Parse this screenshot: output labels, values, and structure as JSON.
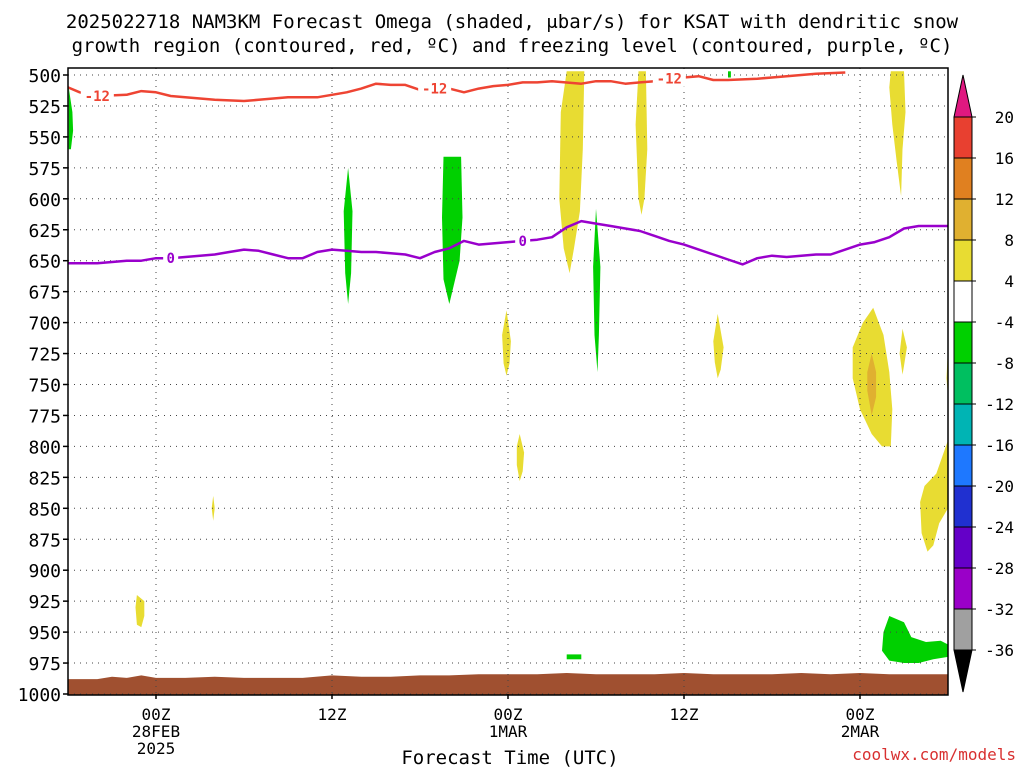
{
  "title_line1": "2025022718 NAM3KM Forecast Omega (shaded, μbar/s) for KSAT with dendritic snow",
  "title_line2": "growth region (contoured, red, ºC) and freezing level (contoured, purple, ºC)",
  "xlabel": "Forecast Time (UTC)",
  "credit": "coolwx.com/models",
  "chart_data": {
    "type": "heatmap",
    "y_axis": {
      "label": "",
      "unit": "hPa",
      "range": [
        1000,
        500
      ],
      "ticks": [
        500,
        525,
        550,
        575,
        600,
        625,
        650,
        675,
        700,
        725,
        750,
        775,
        800,
        825,
        850,
        875,
        900,
        925,
        950,
        975,
        1000
      ]
    },
    "x_axis": {
      "unit": "forecast hour",
      "range": [
        0,
        60
      ],
      "ticks": [
        {
          "hour": 6,
          "lines": [
            "00Z",
            "28FEB",
            "2025"
          ]
        },
        {
          "hour": 18,
          "lines": [
            "12Z"
          ]
        },
        {
          "hour": 30,
          "lines": [
            "00Z",
            "1MAR"
          ]
        },
        {
          "hour": 42,
          "lines": [
            "12Z"
          ]
        },
        {
          "hour": 54,
          "lines": [
            "00Z",
            "2MAR"
          ]
        }
      ]
    },
    "colorbar": {
      "levels": [
        -36,
        -32,
        -28,
        -24,
        -20,
        -16,
        -12,
        -8,
        -4,
        4,
        8,
        12,
        16,
        20
      ],
      "labels": [
        "20",
        "16",
        "12",
        "8",
        "4",
        "-4",
        "-8",
        "-12",
        "-16",
        "-20",
        "-24",
        "-28",
        "-32",
        "-36"
      ],
      "colors": [
        "#a0a0a0",
        "#9a00c8",
        "#6400c8",
        "#2030d0",
        "#1e78ff",
        "#00b4b4",
        "#00bf60",
        "#00d000",
        "#ffffff",
        "#e8dc32",
        "#e0b030",
        "#e08020",
        "#e84030",
        "#e01880"
      ]
    },
    "dgz_contour": {
      "name": "-12",
      "color": "#ee4433",
      "points": [
        [
          0,
          510
        ],
        [
          0.8,
          514
        ],
        [
          2,
          517
        ],
        [
          4,
          516
        ],
        [
          5,
          513
        ],
        [
          6,
          514
        ],
        [
          7,
          517
        ],
        [
          8,
          518
        ],
        [
          10,
          520
        ],
        [
          12,
          521
        ],
        [
          13,
          520
        ],
        [
          15,
          518
        ],
        [
          17,
          518
        ],
        [
          19,
          514
        ],
        [
          20,
          511
        ],
        [
          21,
          507
        ],
        [
          22,
          508
        ],
        [
          23,
          508
        ],
        [
          24,
          512
        ],
        [
          25,
          511
        ],
        [
          26,
          511
        ],
        [
          27,
          514
        ],
        [
          28,
          511
        ],
        [
          29,
          509
        ],
        [
          30,
          508
        ],
        [
          31,
          506
        ],
        [
          32,
          506
        ],
        [
          33,
          505
        ],
        [
          35,
          507
        ],
        [
          36,
          505
        ],
        [
          37,
          505
        ],
        [
          38,
          507
        ],
        [
          39,
          506
        ],
        [
          40,
          505
        ],
        [
          41,
          503
        ],
        [
          42,
          502
        ],
        [
          43,
          501
        ],
        [
          44,
          504
        ],
        [
          45,
          504
        ],
        [
          47,
          503
        ],
        [
          48,
          502
        ],
        [
          50,
          500
        ],
        [
          51,
          499
        ],
        [
          53,
          498
        ]
      ],
      "labels": [
        [
          2,
          517
        ],
        [
          25,
          511
        ],
        [
          41,
          503
        ]
      ]
    },
    "freezing_level": {
      "name": "0",
      "color": "#9900cc",
      "points": [
        [
          0,
          652
        ],
        [
          2,
          652
        ],
        [
          4,
          650
        ],
        [
          5,
          650
        ],
        [
          6,
          648
        ],
        [
          7,
          648
        ],
        [
          8,
          647
        ],
        [
          10,
          645
        ],
        [
          11,
          643
        ],
        [
          12,
          641
        ],
        [
          13,
          642
        ],
        [
          14,
          645
        ],
        [
          15,
          648
        ],
        [
          16,
          648
        ],
        [
          17,
          643
        ],
        [
          18,
          641
        ],
        [
          19,
          642
        ],
        [
          20,
          643
        ],
        [
          21,
          643
        ],
        [
          22,
          644
        ],
        [
          23,
          645
        ],
        [
          24,
          648
        ],
        [
          25,
          643
        ],
        [
          26,
          640
        ],
        [
          27,
          634
        ],
        [
          28,
          637
        ],
        [
          29,
          636
        ],
        [
          30,
          635
        ],
        [
          31,
          634
        ],
        [
          32,
          633
        ],
        [
          33,
          631
        ],
        [
          34,
          623
        ],
        [
          35,
          618
        ],
        [
          36,
          620
        ],
        [
          37,
          622
        ],
        [
          38,
          624
        ],
        [
          39,
          626
        ],
        [
          40,
          630
        ],
        [
          41,
          634
        ],
        [
          42,
          637
        ],
        [
          43,
          641
        ],
        [
          44,
          645
        ],
        [
          45,
          649
        ],
        [
          46,
          653
        ],
        [
          47,
          648
        ],
        [
          48,
          646
        ],
        [
          49,
          647
        ],
        [
          50,
          646
        ],
        [
          51,
          645
        ],
        [
          52,
          645
        ],
        [
          53,
          641
        ],
        [
          54,
          637
        ],
        [
          55,
          635
        ],
        [
          56,
          631
        ],
        [
          57,
          624
        ],
        [
          58,
          622
        ],
        [
          60,
          622
        ]
      ],
      "labels": [
        [
          7,
          648
        ],
        [
          31,
          634
        ]
      ]
    },
    "shaded_regions": [
      {
        "value": "-8",
        "color": "#00d000",
        "points": [
          [
            0.05,
            510
          ],
          [
            0.3,
            530
          ],
          [
            0.35,
            545
          ],
          [
            0.2,
            560
          ],
          [
            0.05,
            560
          ]
        ]
      },
      {
        "value": "-8",
        "color": "#00d000",
        "points": [
          [
            19.1,
            575
          ],
          [
            19.4,
            610
          ],
          [
            19.3,
            660
          ],
          [
            19.1,
            685
          ],
          [
            18.9,
            660
          ],
          [
            18.8,
            610
          ]
        ]
      },
      {
        "value": "-8",
        "color": "#00d000",
        "points": [
          [
            25.6,
            566
          ],
          [
            26.8,
            566
          ],
          [
            26.9,
            615
          ],
          [
            26.7,
            650
          ],
          [
            26.0,
            685
          ],
          [
            25.6,
            665
          ],
          [
            25.5,
            615
          ]
        ]
      },
      {
        "value": "-8",
        "color": "#00d000",
        "points": [
          [
            36.0,
            608
          ],
          [
            36.3,
            655
          ],
          [
            36.2,
            710
          ],
          [
            36.1,
            740
          ],
          [
            35.9,
            710
          ],
          [
            35.8,
            655
          ]
        ]
      },
      {
        "value": "-8",
        "color": "#00d000",
        "points": [
          [
            34.0,
            968
          ],
          [
            35.0,
            968
          ],
          [
            35.0,
            972
          ],
          [
            34.0,
            972
          ]
        ]
      },
      {
        "value": "-8",
        "color": "#00d000",
        "points": [
          [
            56.0,
            937
          ],
          [
            57.0,
            942
          ],
          [
            57.5,
            954
          ],
          [
            58.5,
            958
          ],
          [
            59.5,
            957
          ],
          [
            60.0,
            960
          ],
          [
            60.0,
            970
          ],
          [
            59.0,
            972
          ],
          [
            58.0,
            975
          ],
          [
            57.0,
            975
          ],
          [
            56.0,
            973
          ],
          [
            55.5,
            965
          ],
          [
            55.6,
            950
          ]
        ]
      },
      {
        "value": "-8",
        "color": "#00d000",
        "points": [
          [
            45.0,
            497
          ],
          [
            45.2,
            497
          ],
          [
            45.2,
            502
          ],
          [
            45.0,
            502
          ]
        ]
      },
      {
        "value": "4",
        "color": "#e8dc32",
        "points": [
          [
            34.0,
            497
          ],
          [
            35.2,
            497
          ],
          [
            35.1,
            560
          ],
          [
            34.9,
            610
          ],
          [
            34.5,
            640
          ],
          [
            34.2,
            660
          ],
          [
            33.8,
            640
          ],
          [
            33.5,
            600
          ],
          [
            33.6,
            530
          ]
        ]
      },
      {
        "value": "4",
        "color": "#e8dc32",
        "points": [
          [
            38.9,
            497
          ],
          [
            39.4,
            497
          ],
          [
            39.5,
            560
          ],
          [
            39.3,
            600
          ],
          [
            39.1,
            613
          ],
          [
            38.9,
            600
          ],
          [
            38.7,
            540
          ]
        ]
      },
      {
        "value": "4",
        "color": "#e8dc32",
        "points": [
          [
            56.1,
            497
          ],
          [
            57.0,
            497
          ],
          [
            57.1,
            530
          ],
          [
            56.9,
            560
          ],
          [
            56.8,
            598
          ],
          [
            56.5,
            570
          ],
          [
            56.2,
            540
          ],
          [
            56.0,
            510
          ]
        ]
      },
      {
        "value": "4",
        "color": "#e8dc32",
        "points": [
          [
            29.9,
            690
          ],
          [
            30.2,
            715
          ],
          [
            30.1,
            733
          ],
          [
            29.9,
            743
          ],
          [
            29.7,
            733
          ],
          [
            29.6,
            710
          ]
        ]
      },
      {
        "value": "4",
        "color": "#e8dc32",
        "points": [
          [
            30.8,
            790
          ],
          [
            31.1,
            805
          ],
          [
            31.0,
            820
          ],
          [
            30.8,
            828
          ],
          [
            30.6,
            815
          ],
          [
            30.6,
            800
          ]
        ]
      },
      {
        "value": "4",
        "color": "#e8dc32",
        "points": [
          [
            9.9,
            840
          ],
          [
            10.0,
            850
          ],
          [
            9.9,
            860
          ],
          [
            9.8,
            850
          ]
        ]
      },
      {
        "value": "4",
        "color": "#e8dc32",
        "points": [
          [
            4.7,
            920
          ],
          [
            5.2,
            925
          ],
          [
            5.2,
            937
          ],
          [
            5.0,
            946
          ],
          [
            4.7,
            944
          ],
          [
            4.6,
            930
          ]
        ]
      },
      {
        "value": "4",
        "color": "#e8dc32",
        "points": [
          [
            44.3,
            693
          ],
          [
            44.7,
            720
          ],
          [
            44.5,
            738
          ],
          [
            44.3,
            745
          ],
          [
            44.1,
            732
          ],
          [
            44.0,
            715
          ]
        ]
      },
      {
        "value": "4",
        "color": "#e8dc32",
        "points": [
          [
            56.9,
            705
          ],
          [
            57.2,
            720
          ],
          [
            57.0,
            735
          ],
          [
            56.9,
            742
          ],
          [
            56.7,
            725
          ]
        ]
      },
      {
        "value": "4",
        "color": "#e8dc32",
        "points": [
          [
            54.9,
            688
          ],
          [
            55.6,
            710
          ],
          [
            56.0,
            740
          ],
          [
            56.2,
            770
          ],
          [
            56.1,
            800
          ],
          [
            55.5,
            800
          ],
          [
            54.8,
            790
          ],
          [
            54.0,
            770
          ],
          [
            53.5,
            745
          ],
          [
            53.5,
            720
          ],
          [
            54.2,
            700
          ]
        ]
      },
      {
        "value": "4",
        "color": "#e8dc32",
        "points": [
          [
            60.0,
            795
          ],
          [
            60.0,
            850
          ],
          [
            59.4,
            862
          ],
          [
            59.0,
            880
          ],
          [
            58.6,
            885
          ],
          [
            58.2,
            870
          ],
          [
            58.1,
            845
          ],
          [
            58.4,
            832
          ],
          [
            59.2,
            822
          ]
        ]
      },
      {
        "value": "4",
        "color": "#e8dc32",
        "points": [
          [
            60.0,
            720
          ],
          [
            60.0,
            760
          ],
          [
            59.9,
            745
          ]
        ]
      },
      {
        "value": "8",
        "color": "#e0b030",
        "points": [
          [
            54.8,
            725
          ],
          [
            55.1,
            740
          ],
          [
            55.1,
            760
          ],
          [
            54.8,
            775
          ],
          [
            54.5,
            755
          ],
          [
            54.5,
            740
          ]
        ]
      }
    ],
    "terrain": {
      "color": "#a05030",
      "surface": [
        [
          0,
          988
        ],
        [
          2,
          988
        ],
        [
          3,
          986
        ],
        [
          4,
          987
        ],
        [
          5,
          985
        ],
        [
          6,
          987
        ],
        [
          8,
          987
        ],
        [
          10,
          986
        ],
        [
          12,
          987
        ],
        [
          14,
          987
        ],
        [
          16,
          987
        ],
        [
          18,
          985
        ],
        [
          20,
          986
        ],
        [
          22,
          986
        ],
        [
          24,
          985
        ],
        [
          26,
          985
        ],
        [
          28,
          984
        ],
        [
          30,
          984
        ],
        [
          32,
          984
        ],
        [
          34,
          983
        ],
        [
          36,
          984
        ],
        [
          38,
          984
        ],
        [
          40,
          984
        ],
        [
          42,
          983
        ],
        [
          44,
          984
        ],
        [
          46,
          984
        ],
        [
          48,
          984
        ],
        [
          50,
          983
        ],
        [
          52,
          984
        ],
        [
          54,
          983
        ],
        [
          56,
          984
        ],
        [
          58,
          984
        ],
        [
          60,
          984
        ]
      ]
    }
  }
}
